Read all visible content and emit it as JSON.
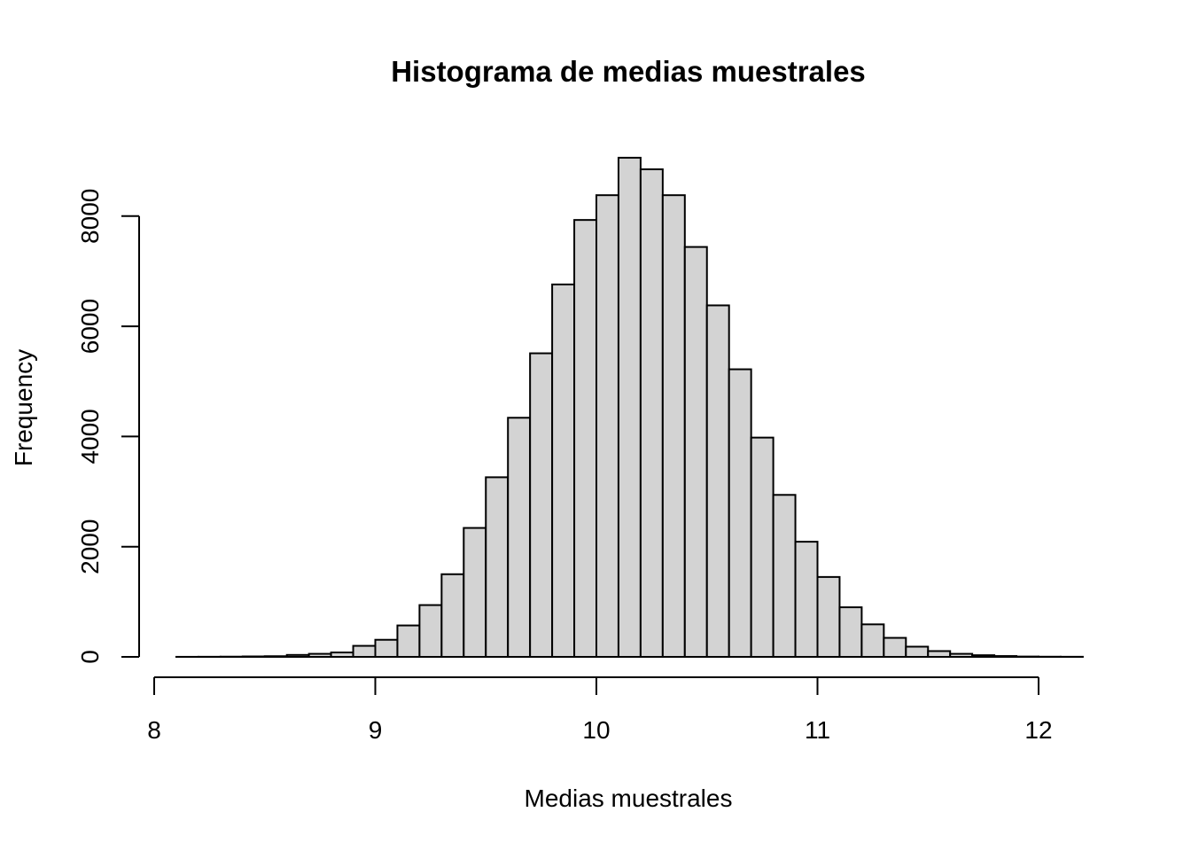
{
  "chart_data": {
    "type": "bar",
    "title": "Histograma de medias muestrales",
    "xlabel": "Medias muestrales",
    "ylabel": "Frequency",
    "x_ticks": [
      8,
      9,
      10,
      11,
      12
    ],
    "y_ticks": [
      0,
      2000,
      4000,
      6000,
      8000
    ],
    "xlim": [
      8,
      12
    ],
    "ylim": [
      0,
      9000
    ],
    "bin_width": 0.1,
    "bin_edges_start": 8.1,
    "values": [
      1,
      2,
      4,
      8,
      12,
      35,
      55,
      80,
      200,
      310,
      570,
      940,
      1500,
      2340,
      3260,
      4340,
      5510,
      6760,
      7930,
      8380,
      9060,
      8850,
      8380,
      7440,
      6380,
      5220,
      3980,
      2940,
      2090,
      1450,
      900,
      590,
      345,
      185,
      105,
      55,
      30,
      15,
      6,
      3,
      2
    ],
    "grid": false,
    "legend": "none",
    "colors": {
      "bar_fill": "#d3d3d3",
      "bar_stroke": "#000000"
    }
  }
}
